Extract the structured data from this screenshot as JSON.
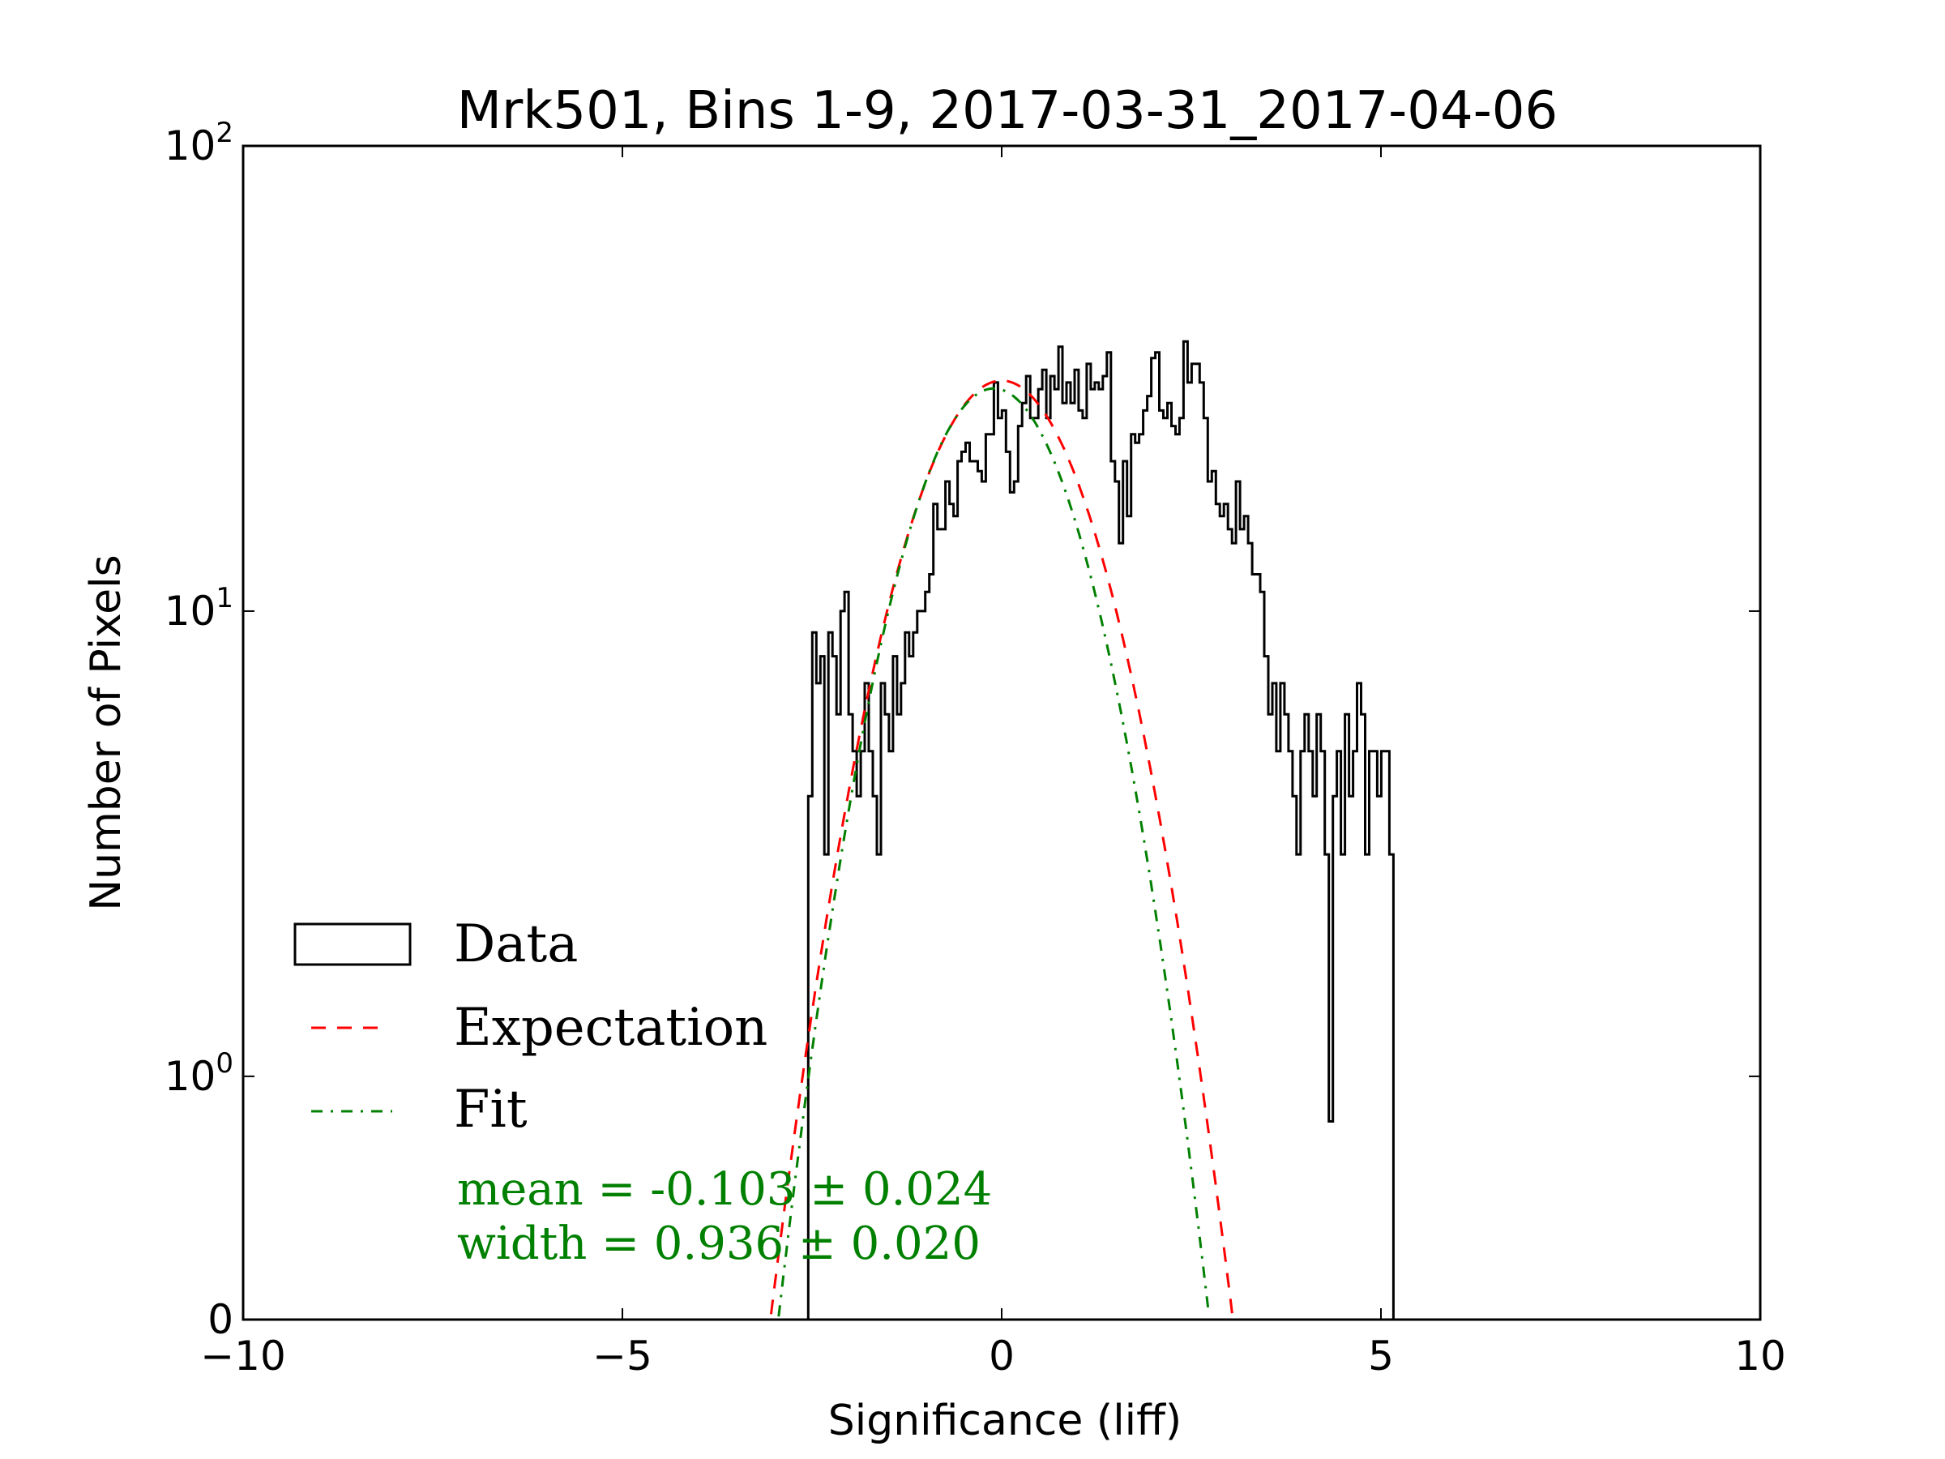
{
  "chart_data": {
    "type": "histogram",
    "title": "Mrk501, Bins 1-9, 2017-03-31_2017-04-06",
    "xlabel": "Significance (liff)",
    "ylabel": "Number of Pixels",
    "xlim": [
      -10,
      10
    ],
    "ylim": [
      0.3,
      100
    ],
    "yscale": "log",
    "x_ticks": [
      {
        "value": -10,
        "label": "−10"
      },
      {
        "value": -5,
        "label": "−5"
      },
      {
        "value": 0,
        "label": "0"
      },
      {
        "value": 5,
        "label": "5"
      },
      {
        "value": 10,
        "label": "10"
      }
    ],
    "y_ticks": [
      {
        "value": 1,
        "base": "10",
        "exp": "0"
      },
      {
        "value": 10,
        "base": "10",
        "exp": "1"
      },
      {
        "value": 100,
        "base": "10",
        "exp": "2"
      }
    ],
    "y_bottom_label": "0",
    "bin_start": -2.55,
    "bin_width": 0.0532,
    "data_counts": [
      4,
      9,
      7,
      8,
      3,
      9,
      8,
      6,
      10,
      11,
      6,
      5,
      4,
      5,
      7,
      5,
      4,
      3,
      7,
      6,
      5,
      8,
      6,
      7,
      9,
      8,
      9,
      10,
      10,
      11,
      12,
      17,
      15,
      15,
      19,
      17,
      16,
      21,
      22,
      23,
      21,
      21,
      20,
      19,
      24,
      24,
      31,
      26,
      27,
      22,
      18,
      19,
      25,
      28,
      32,
      26,
      26,
      30,
      33,
      26,
      32,
      30,
      37,
      28,
      31,
      28,
      33,
      27,
      26,
      34,
      30,
      31,
      30,
      32,
      36,
      21,
      19,
      14,
      21,
      16,
      24,
      23,
      24,
      27,
      29,
      35,
      36,
      27,
      26,
      28,
      25,
      24,
      26,
      38,
      31,
      34,
      34,
      31,
      26,
      19,
      20,
      17,
      16,
      17,
      15,
      14,
      19,
      15,
      16,
      14,
      12,
      12,
      11,
      8,
      6,
      7,
      5,
      7,
      6,
      5,
      4,
      3,
      5,
      6,
      5,
      4,
      6,
      5,
      3,
      0.8,
      4,
      5,
      3,
      6,
      4,
      5,
      7,
      6,
      3,
      5,
      5,
      4,
      5,
      5,
      3,
      0
    ],
    "expectation": {
      "mean": 0,
      "width": 1.0,
      "amplitude": 31.3
    },
    "fit": {
      "mean": -0.103,
      "width": 0.936,
      "amplitude": 30.1
    },
    "legend": {
      "position": "lower-left",
      "items": [
        {
          "label": "Data",
          "style": "box",
          "color": "#000000"
        },
        {
          "label": "Expectation",
          "style": "dashed",
          "color": "#ff0000"
        },
        {
          "label": "Fit",
          "style": "dashdot",
          "color": "#008000"
        }
      ]
    },
    "annotations": {
      "mean_text": "mean = -0.103 ± 0.024",
      "width_text": "width = 0.936 ± 0.020"
    }
  }
}
